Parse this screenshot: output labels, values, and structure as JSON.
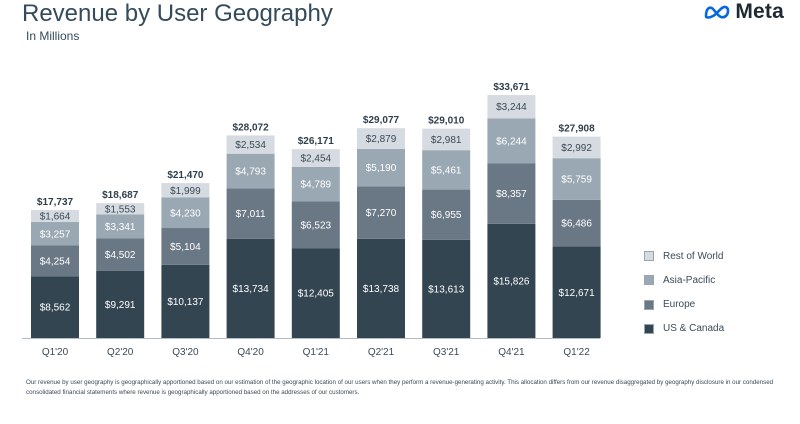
{
  "header": {
    "title": "Revenue by User Geography",
    "subtitle": "In Millions"
  },
  "logo": {
    "text": "Meta",
    "icon": "meta-infinity-icon",
    "color": "#0668E1"
  },
  "footnote": "Our revenue by user geography is geographically apportioned based on our estimation of the geographic location of our users when they perform a revenue-generating activity. This allocation differs from our revenue disaggregated by geography disclosure in our condensed consolidated financial statements where revenue is geographically apportioned based on the addresses of our customers.",
  "chart_data": {
    "type": "bar",
    "stacked": true,
    "title": "Revenue by User Geography",
    "subtitle": "In Millions",
    "categories": [
      "Q1'20",
      "Q2'20",
      "Q3'20",
      "Q4'20",
      "Q1'21",
      "Q2'21",
      "Q3'21",
      "Q4'21",
      "Q1'22"
    ],
    "series": [
      {
        "name": "US & Canada",
        "color": "#344552",
        "text_color": "#ffffff",
        "values": [
          8562,
          9291,
          10137,
          13734,
          12405,
          13738,
          13613,
          15826,
          12671
        ]
      },
      {
        "name": "Europe",
        "color": "#6a7886",
        "text_color": "#ffffff",
        "values": [
          4254,
          4502,
          5104,
          7011,
          6523,
          7270,
          6955,
          8357,
          6486
        ]
      },
      {
        "name": "Asia-Pacific",
        "color": "#9aa8b3",
        "text_color": "#ffffff",
        "values": [
          3257,
          3341,
          4230,
          4793,
          4789,
          5190,
          5461,
          6244,
          5759
        ]
      },
      {
        "name": "Rest of World",
        "color": "#d5dbe0",
        "text_color": "#3b4a57",
        "values": [
          1664,
          1553,
          1999,
          2534,
          2454,
          2879,
          2981,
          3244,
          2992
        ]
      }
    ],
    "totals": [
      17737,
      18687,
      21470,
      28072,
      26171,
      29077,
      29010,
      33671,
      27908
    ],
    "value_labels": {
      "US & Canada": [
        "$8,562",
        "$9,291",
        "$10,137",
        "$13,734",
        "$12,405",
        "$13,738",
        "$13,613",
        "$15,826",
        "$12,671"
      ],
      "Europe": [
        "$4,254",
        "$4,502",
        "$5,104",
        "$7,011",
        "$6,523",
        "$7,270",
        "$6,955",
        "$8,357",
        "$6,486"
      ],
      "Asia-Pacific": [
        "$3,257",
        "$3,341",
        "$4,230",
        "$4,793",
        "$4,789",
        "$5,190",
        "$5,461",
        "$6,244",
        "$5,759"
      ],
      "Rest of World": [
        "$1,664",
        "$1,553",
        "$1,999",
        "$2,534",
        "$2,454",
        "$2,879",
        "$2,981",
        "$3,244",
        "$2,992"
      ]
    },
    "total_labels": [
      "$17,737",
      "$18,687",
      "$21,470",
      "$28,072",
      "$26,171",
      "$29,077",
      "$29,010",
      "$33,671",
      "$27,908"
    ],
    "legend": [
      "Rest of World",
      "Asia-Pacific",
      "Europe",
      "US & Canada"
    ],
    "legend_placement": "right",
    "grid": false,
    "xlabel": "",
    "ylabel": "",
    "ylim": [
      0,
      35000
    ]
  }
}
